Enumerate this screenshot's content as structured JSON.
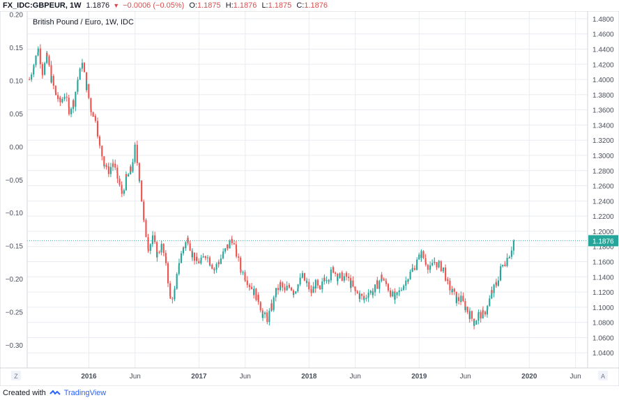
{
  "header": {
    "symbol": "FX_IDC:GBPEUR, 1W",
    "last": "1.1876",
    "change": "−0.0006 (−0.05%)",
    "o_label": "O:",
    "o_value": "1.1875",
    "h_label": "H:",
    "h_value": "1.1876",
    "l_label": "L:",
    "l_value": "1.1875",
    "c_label": "C:",
    "c_value": "1.1876",
    "arrow": "▼"
  },
  "chart_data": {
    "type": "candlestick",
    "title": "British Pound / Euro, 1W, IDC",
    "x_ticks": [
      "2016",
      "Jun",
      "2017",
      "Jun",
      "2018",
      "Jun",
      "2019",
      "Jun",
      "2020",
      "Jun"
    ],
    "x_tick_years": [
      2016.0,
      2016.42,
      2017.0,
      2017.42,
      2018.0,
      2018.42,
      2019.0,
      2019.42,
      2020.0,
      2020.42
    ],
    "x_range": [
      2015.44,
      2020.53
    ],
    "left_axis": {
      "range": [
        -0.335,
        0.205
      ],
      "ticks": [
        "0.20",
        "0.15",
        "0.10",
        "0.05",
        "0.00",
        "−0.05",
        "−0.10",
        "−0.15",
        "−0.20",
        "−0.25",
        "−0.30"
      ],
      "tick_values": [
        0.2,
        0.15,
        0.1,
        0.05,
        0.0,
        -0.05,
        -0.1,
        -0.15,
        -0.2,
        -0.25,
        -0.3
      ]
    },
    "right_axis": {
      "range": [
        1.02,
        1.49
      ],
      "ticks": [
        "1.4800",
        "1.4600",
        "1.4400",
        "1.4200",
        "1.4000",
        "1.3800",
        "1.3600",
        "1.3400",
        "1.3200",
        "1.3000",
        "1.2800",
        "1.2600",
        "1.2400",
        "1.2200",
        "1.2000",
        "1.1800",
        "1.1600",
        "1.1400",
        "1.1200",
        "1.1000",
        "1.0800",
        "1.0600",
        "1.0400"
      ],
      "tick_values": [
        1.48,
        1.46,
        1.44,
        1.42,
        1.4,
        1.38,
        1.36,
        1.34,
        1.32,
        1.3,
        1.28,
        1.26,
        1.24,
        1.22,
        1.2,
        1.18,
        1.16,
        1.14,
        1.12,
        1.1,
        1.08,
        1.06,
        1.04
      ]
    },
    "last_price": 1.1876,
    "last_price_label": "1.1876",
    "series": [
      {
        "name": "close",
        "points": [
          [
            2015.46,
            1.4
          ],
          [
            2015.5,
            1.42
          ],
          [
            2015.54,
            1.44
          ],
          [
            2015.58,
            1.41
          ],
          [
            2015.62,
            1.43
          ],
          [
            2015.66,
            1.4
          ],
          [
            2015.7,
            1.38
          ],
          [
            2015.74,
            1.37
          ],
          [
            2015.78,
            1.38
          ],
          [
            2015.82,
            1.36
          ],
          [
            2015.86,
            1.37
          ],
          [
            2015.9,
            1.4
          ],
          [
            2015.94,
            1.42
          ],
          [
            2015.98,
            1.39
          ],
          [
            2016.02,
            1.36
          ],
          [
            2016.06,
            1.35
          ],
          [
            2016.1,
            1.31
          ],
          [
            2016.14,
            1.29
          ],
          [
            2016.18,
            1.28
          ],
          [
            2016.22,
            1.29
          ],
          [
            2016.26,
            1.27
          ],
          [
            2016.3,
            1.25
          ],
          [
            2016.34,
            1.27
          ],
          [
            2016.38,
            1.28
          ],
          [
            2016.42,
            1.31
          ],
          [
            2016.46,
            1.27
          ],
          [
            2016.5,
            1.21
          ],
          [
            2016.54,
            1.18
          ],
          [
            2016.58,
            1.19
          ],
          [
            2016.62,
            1.17
          ],
          [
            2016.66,
            1.18
          ],
          [
            2016.7,
            1.16
          ],
          [
            2016.74,
            1.11
          ],
          [
            2016.78,
            1.12
          ],
          [
            2016.82,
            1.16
          ],
          [
            2016.86,
            1.18
          ],
          [
            2016.9,
            1.19
          ],
          [
            2016.94,
            1.17
          ],
          [
            2016.98,
            1.16
          ],
          [
            2017.02,
            1.16
          ],
          [
            2017.06,
            1.17
          ],
          [
            2017.1,
            1.16
          ],
          [
            2017.14,
            1.15
          ],
          [
            2017.18,
            1.16
          ],
          [
            2017.22,
            1.17
          ],
          [
            2017.26,
            1.18
          ],
          [
            2017.3,
            1.19
          ],
          [
            2017.34,
            1.17
          ],
          [
            2017.38,
            1.15
          ],
          [
            2017.42,
            1.14
          ],
          [
            2017.46,
            1.13
          ],
          [
            2017.5,
            1.12
          ],
          [
            2017.54,
            1.11
          ],
          [
            2017.58,
            1.09
          ],
          [
            2017.62,
            1.085
          ],
          [
            2017.66,
            1.1
          ],
          [
            2017.7,
            1.12
          ],
          [
            2017.74,
            1.13
          ],
          [
            2017.78,
            1.12
          ],
          [
            2017.82,
            1.13
          ],
          [
            2017.86,
            1.12
          ],
          [
            2017.9,
            1.13
          ],
          [
            2017.94,
            1.14
          ],
          [
            2017.98,
            1.13
          ],
          [
            2018.02,
            1.12
          ],
          [
            2018.06,
            1.13
          ],
          [
            2018.1,
            1.12
          ],
          [
            2018.14,
            1.14
          ],
          [
            2018.18,
            1.14
          ],
          [
            2018.22,
            1.15
          ],
          [
            2018.26,
            1.14
          ],
          [
            2018.3,
            1.14
          ],
          [
            2018.34,
            1.14
          ],
          [
            2018.38,
            1.13
          ],
          [
            2018.42,
            1.12
          ],
          [
            2018.46,
            1.115
          ],
          [
            2018.5,
            1.11
          ],
          [
            2018.54,
            1.12
          ],
          [
            2018.58,
            1.12
          ],
          [
            2018.62,
            1.13
          ],
          [
            2018.66,
            1.14
          ],
          [
            2018.7,
            1.13
          ],
          [
            2018.74,
            1.12
          ],
          [
            2018.78,
            1.11
          ],
          [
            2018.82,
            1.12
          ],
          [
            2018.86,
            1.13
          ],
          [
            2018.9,
            1.14
          ],
          [
            2018.94,
            1.15
          ],
          [
            2018.98,
            1.16
          ],
          [
            2019.02,
            1.17
          ],
          [
            2019.06,
            1.16
          ],
          [
            2019.1,
            1.15
          ],
          [
            2019.14,
            1.16
          ],
          [
            2019.18,
            1.155
          ],
          [
            2019.22,
            1.15
          ],
          [
            2019.26,
            1.13
          ],
          [
            2019.3,
            1.12
          ],
          [
            2019.34,
            1.11
          ],
          [
            2019.38,
            1.11
          ],
          [
            2019.42,
            1.1
          ],
          [
            2019.46,
            1.09
          ],
          [
            2019.5,
            1.08
          ],
          [
            2019.54,
            1.09
          ],
          [
            2019.58,
            1.09
          ],
          [
            2019.62,
            1.1
          ],
          [
            2019.66,
            1.12
          ],
          [
            2019.7,
            1.13
          ],
          [
            2019.74,
            1.15
          ],
          [
            2019.78,
            1.16
          ],
          [
            2019.82,
            1.17
          ],
          [
            2019.86,
            1.1876
          ]
        ]
      }
    ]
  },
  "misc": {
    "tz_button": "Z",
    "auto_button": "A",
    "footer_text": "Created with",
    "footer_brand": "TradingView"
  },
  "colors": {
    "up": "#26a69a",
    "down": "#ef5350",
    "grid": "#e8ecf1",
    "axis_text": "#4a4e5a",
    "price_line": "#26a69a"
  }
}
